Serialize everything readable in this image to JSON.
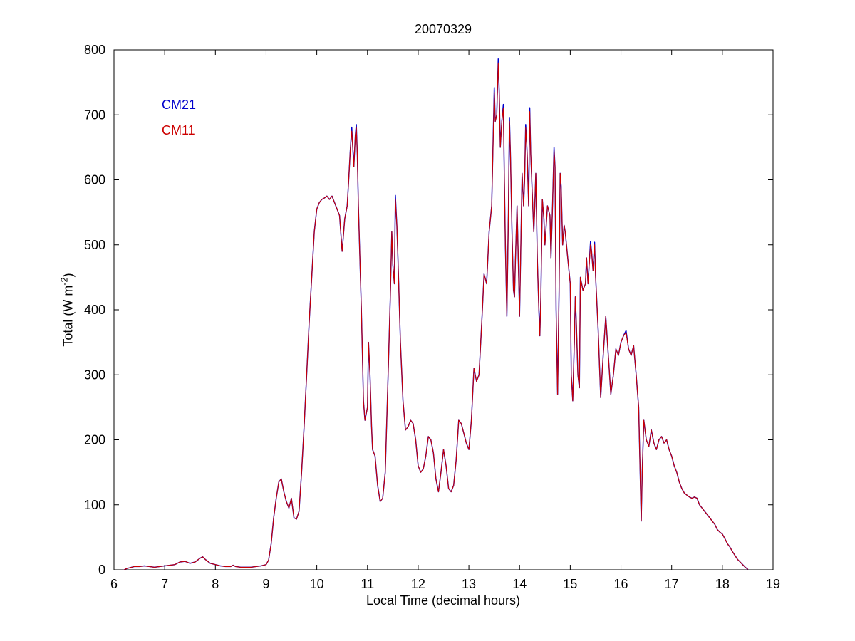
{
  "figure": {
    "background": "#ffffff"
  },
  "chart_data": {
    "type": "line",
    "title": "20070329",
    "xlabel": "Local Time (decimal hours)",
    "ylabel": "Total (W m-2)",
    "ylabel_parts": {
      "pre": "Total (W m",
      "sup": "-2",
      "post": ")"
    },
    "xlim": [
      6,
      19
    ],
    "ylim": [
      0,
      800
    ],
    "xticks": [
      6,
      7,
      8,
      9,
      10,
      11,
      12,
      13,
      14,
      15,
      16,
      17,
      18,
      19
    ],
    "yticks": [
      0,
      100,
      200,
      300,
      400,
      500,
      600,
      700,
      800
    ],
    "grid": false,
    "legend_position": "top-left-inside",
    "x": [
      6.2,
      6.25,
      6.3,
      6.4,
      6.5,
      6.6,
      6.7,
      6.8,
      6.9,
      7,
      7.1,
      7.2,
      7.3,
      7.4,
      7.5,
      7.6,
      7.7,
      7.75,
      7.8,
      7.9,
      8,
      8.1,
      8.2,
      8.3,
      8.35,
      8.4,
      8.5,
      8.6,
      8.7,
      8.8,
      8.9,
      9,
      9.05,
      9.1,
      9.15,
      9.2,
      9.25,
      9.3,
      9.35,
      9.4,
      9.45,
      9.5,
      9.55,
      9.6,
      9.65,
      9.7,
      9.75,
      9.8,
      9.85,
      9.9,
      9.95,
      10,
      10.05,
      10.1,
      10.15,
      10.2,
      10.25,
      10.3,
      10.35,
      10.4,
      10.45,
      10.5,
      10.55,
      10.6,
      10.63,
      10.66,
      10.69,
      10.71,
      10.73,
      10.76,
      10.78,
      10.8,
      10.82,
      10.85,
      10.88,
      10.9,
      10.92,
      10.95,
      11,
      11.02,
      11.05,
      11.08,
      11.1,
      11.15,
      11.2,
      11.25,
      11.3,
      11.35,
      11.4,
      11.45,
      11.48,
      11.5,
      11.53,
      11.55,
      11.58,
      11.6,
      11.65,
      11.7,
      11.75,
      11.8,
      11.85,
      11.9,
      11.95,
      12,
      12.05,
      12.1,
      12.15,
      12.2,
      12.25,
      12.3,
      12.35,
      12.4,
      12.45,
      12.5,
      12.55,
      12.6,
      12.65,
      12.7,
      12.75,
      12.8,
      12.85,
      12.9,
      12.95,
      13,
      13.05,
      13.1,
      13.15,
      13.2,
      13.25,
      13.3,
      13.35,
      13.4,
      13.45,
      13.5,
      13.52,
      13.55,
      13.58,
      13.6,
      13.62,
      13.65,
      13.68,
      13.7,
      13.72,
      13.75,
      13.78,
      13.8,
      13.82,
      13.85,
      13.88,
      13.9,
      13.92,
      13.95,
      13.98,
      14,
      14.02,
      14.05,
      14.08,
      14.1,
      14.12,
      14.15,
      14.18,
      14.2,
      14.22,
      14.25,
      14.28,
      14.3,
      14.32,
      14.35,
      14.38,
      14.4,
      14.42,
      14.45,
      14.48,
      14.5,
      14.55,
      14.6,
      14.62,
      14.65,
      14.68,
      14.7,
      14.72,
      14.75,
      14.78,
      14.8,
      14.82,
      14.85,
      14.88,
      14.9,
      14.95,
      15,
      15.02,
      15.05,
      15.08,
      15.1,
      15.12,
      15.15,
      15.18,
      15.2,
      15.25,
      15.3,
      15.32,
      15.35,
      15.4,
      15.42,
      15.45,
      15.48,
      15.5,
      15.55,
      15.6,
      15.65,
      15.7,
      15.75,
      15.8,
      15.85,
      15.9,
      15.95,
      16,
      16.05,
      16.1,
      16.15,
      16.2,
      16.25,
      16.3,
      16.35,
      16.4,
      16.42,
      16.45,
      16.5,
      16.55,
      16.6,
      16.65,
      16.7,
      16.75,
      16.8,
      16.85,
      16.9,
      16.95,
      17,
      17.05,
      17.1,
      17.15,
      17.2,
      17.25,
      17.3,
      17.35,
      17.4,
      17.45,
      17.5,
      17.55,
      17.6,
      17.65,
      17.7,
      17.75,
      17.8,
      17.85,
      17.9,
      17.95,
      18,
      18.05,
      18.1,
      18.15,
      18.2,
      18.25,
      18.3,
      18.35,
      18.4,
      18.45,
      18.5
    ],
    "series": [
      {
        "name": "CM21",
        "color": "#0000cc",
        "values": [
          0,
          2,
          3,
          5,
          5,
          6,
          5,
          4,
          5,
          6,
          7,
          8,
          12,
          13,
          10,
          12,
          18,
          20,
          16,
          10,
          8,
          6,
          5,
          5,
          7,
          5,
          4,
          4,
          4,
          5,
          6,
          8,
          15,
          40,
          80,
          110,
          135,
          140,
          120,
          105,
          95,
          110,
          80,
          78,
          90,
          150,
          220,
          300,
          380,
          450,
          520,
          555,
          565,
          570,
          572,
          575,
          570,
          575,
          565,
          555,
          545,
          490,
          540,
          560,
          600,
          645,
          681,
          650,
          620,
          668,
          685,
          640,
          560,
          480,
          400,
          330,
          260,
          230,
          250,
          350,
          300,
          220,
          185,
          175,
          130,
          105,
          110,
          150,
          280,
          420,
          520,
          470,
          440,
          576,
          530,
          480,
          350,
          260,
          215,
          220,
          230,
          225,
          200,
          160,
          150,
          155,
          175,
          205,
          200,
          180,
          140,
          120,
          150,
          185,
          160,
          125,
          120,
          130,
          170,
          230,
          225,
          210,
          195,
          185,
          230,
          310,
          290,
          300,
          375,
          455,
          440,
          520,
          560,
          742,
          690,
          700,
          786,
          730,
          650,
          690,
          716,
          600,
          500,
          390,
          550,
          696,
          640,
          520,
          430,
          420,
          480,
          560,
          460,
          390,
          480,
          610,
          560,
          600,
          685,
          640,
          560,
          711,
          640,
          580,
          520,
          560,
          610,
          480,
          400,
          360,
          420,
          570,
          540,
          500,
          560,
          545,
          480,
          560,
          650,
          620,
          400,
          270,
          430,
          610,
          590,
          500,
          530,
          520,
          480,
          440,
          300,
          260,
          350,
          420,
          380,
          300,
          280,
          450,
          430,
          440,
          480,
          440,
          505,
          490,
          460,
          504,
          450,
          370,
          265,
          330,
          390,
          330,
          270,
          300,
          340,
          330,
          350,
          360,
          368,
          340,
          330,
          345,
          300,
          250,
          75,
          150,
          230,
          200,
          190,
          215,
          195,
          185,
          200,
          205,
          195,
          200,
          185,
          175,
          160,
          150,
          135,
          125,
          118,
          115,
          112,
          110,
          112,
          110,
          100,
          95,
          90,
          85,
          80,
          75,
          70,
          62,
          58,
          55,
          48,
          40,
          35,
          28,
          22,
          16,
          12,
          8,
          4,
          1
        ]
      },
      {
        "name": "CM11",
        "color": "#cc0000",
        "values": [
          0,
          2,
          3,
          5,
          5,
          6,
          5,
          4,
          5,
          6,
          7,
          8,
          12,
          13,
          10,
          12,
          18,
          20,
          16,
          10,
          8,
          6,
          5,
          5,
          7,
          5,
          4,
          4,
          4,
          5,
          6,
          8,
          15,
          40,
          80,
          110,
          135,
          140,
          120,
          105,
          95,
          110,
          80,
          78,
          90,
          150,
          220,
          300,
          380,
          450,
          520,
          555,
          565,
          570,
          572,
          575,
          570,
          575,
          565,
          555,
          545,
          490,
          540,
          560,
          600,
          645,
          675,
          650,
          620,
          668,
          680,
          640,
          560,
          480,
          400,
          330,
          260,
          230,
          250,
          350,
          300,
          220,
          185,
          175,
          130,
          105,
          110,
          150,
          280,
          420,
          520,
          470,
          440,
          570,
          530,
          480,
          350,
          260,
          215,
          220,
          230,
          225,
          200,
          160,
          150,
          155,
          175,
          205,
          200,
          180,
          140,
          120,
          150,
          185,
          160,
          125,
          120,
          130,
          170,
          230,
          225,
          210,
          195,
          185,
          230,
          310,
          290,
          300,
          375,
          455,
          440,
          520,
          560,
          735,
          690,
          700,
          780,
          730,
          650,
          690,
          710,
          600,
          500,
          390,
          550,
          690,
          640,
          520,
          430,
          420,
          480,
          560,
          460,
          390,
          480,
          610,
          560,
          600,
          680,
          640,
          560,
          705,
          640,
          580,
          520,
          560,
          610,
          480,
          400,
          360,
          420,
          570,
          540,
          500,
          560,
          545,
          480,
          560,
          645,
          620,
          400,
          270,
          430,
          610,
          590,
          500,
          530,
          520,
          480,
          440,
          300,
          260,
          350,
          420,
          380,
          300,
          280,
          450,
          430,
          440,
          480,
          440,
          500,
          490,
          460,
          500,
          450,
          370,
          265,
          330,
          390,
          330,
          270,
          300,
          340,
          330,
          350,
          360,
          365,
          340,
          330,
          345,
          300,
          250,
          75,
          150,
          230,
          200,
          190,
          215,
          195,
          185,
          200,
          205,
          195,
          200,
          185,
          175,
          160,
          150,
          135,
          125,
          118,
          115,
          112,
          110,
          112,
          110,
          100,
          95,
          90,
          85,
          80,
          75,
          70,
          62,
          58,
          55,
          48,
          40,
          35,
          28,
          22,
          16,
          12,
          8,
          4,
          1
        ]
      }
    ]
  }
}
